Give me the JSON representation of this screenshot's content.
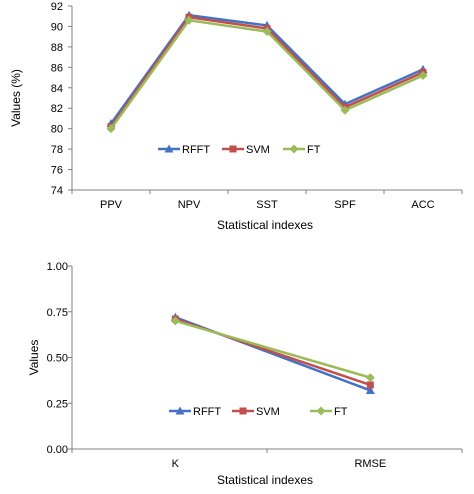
{
  "colors": {
    "RFFT": "#4472C4",
    "SVM": "#C0504D",
    "FT": "#9BBB59",
    "axis": "#808080",
    "text": "#000000"
  },
  "chart_data": [
    {
      "type": "line",
      "title": "",
      "xlabel": "Statistical indexes",
      "ylabel": "Values (%)",
      "categories": [
        "PPV",
        "NPV",
        "SST",
        "SPF",
        "ACC"
      ],
      "ylim": [
        74,
        92
      ],
      "yticks": [
        74,
        76,
        78,
        80,
        82,
        84,
        86,
        88,
        90,
        92
      ],
      "ytick_labels": [
        "74",
        "76",
        "78",
        "80",
        "82",
        "84",
        "86",
        "88",
        "90",
        "92"
      ],
      "grid": false,
      "legend_position": "lower-center",
      "series": [
        {
          "name": "RFFT",
          "marker": "triangle",
          "values": [
            80.5,
            91.1,
            90.1,
            82.4,
            85.8
          ]
        },
        {
          "name": "SVM",
          "marker": "square",
          "values": [
            80.2,
            90.9,
            89.8,
            82.1,
            85.5
          ]
        },
        {
          "name": "FT",
          "marker": "diamond",
          "values": [
            80.0,
            90.6,
            89.5,
            81.8,
            85.2
          ]
        }
      ]
    },
    {
      "type": "line",
      "title": "",
      "xlabel": "Statistical indexes",
      "ylabel": "Values",
      "categories": [
        "K",
        "RMSE"
      ],
      "ylim": [
        0,
        1
      ],
      "yticks": [
        0,
        0.25,
        0.5,
        0.75,
        1
      ],
      "ytick_labels": [
        "0.00",
        "0.25",
        "0.50",
        "0.75",
        "1.00"
      ],
      "grid": false,
      "legend_position": "lower-center",
      "series": [
        {
          "name": "RFFT",
          "marker": "triangle",
          "values": [
            0.72,
            0.32
          ]
        },
        {
          "name": "SVM",
          "marker": "square",
          "values": [
            0.71,
            0.35
          ]
        },
        {
          "name": "FT",
          "marker": "diamond",
          "values": [
            0.7,
            0.39
          ]
        }
      ]
    }
  ]
}
